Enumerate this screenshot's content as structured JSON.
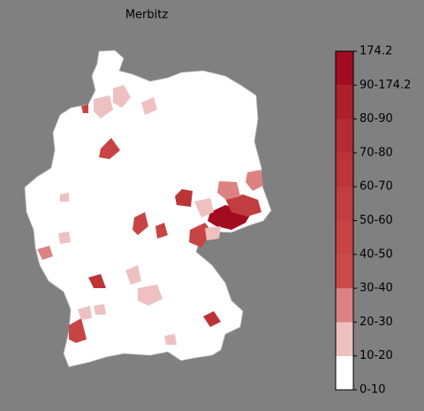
{
  "title": "Merbitz",
  "legend": {
    "labels": [
      "0-10",
      "10-20",
      "20-30",
      "30-40",
      "40-50",
      "50-60",
      "60-70",
      "70-80",
      "80-90",
      "90-174.2",
      "174.2"
    ],
    "colors": [
      "#ffffff",
      "#efc0c0",
      "#dc8282",
      "#cb4b4b",
      "#c84444",
      "#c23d3f",
      "#bc3437",
      "#b62a31",
      "#af1f2b",
      "#a30b21"
    ]
  }
}
